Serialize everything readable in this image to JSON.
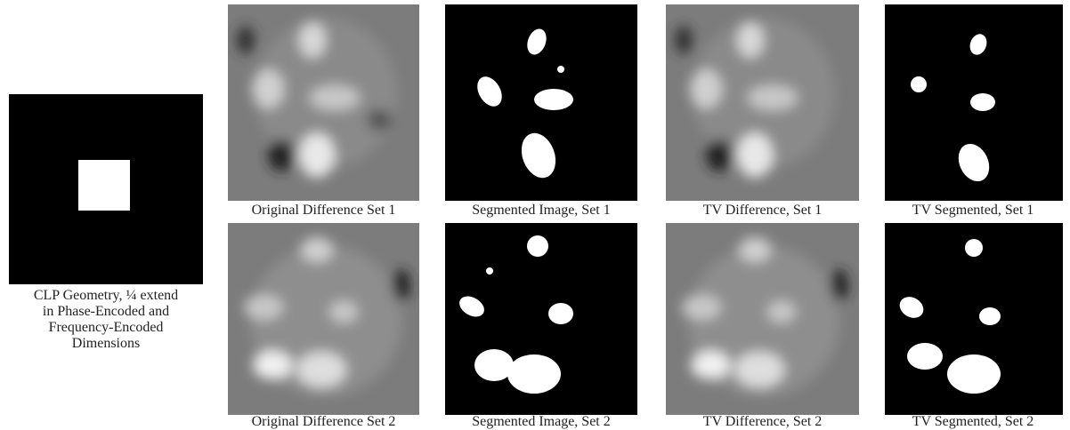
{
  "geometry": {
    "caption_lines": [
      "CLP Geometry, ¼ extend",
      "in Phase-Encoded and",
      "Frequency-Encoded",
      "Dimensions"
    ]
  },
  "grid": {
    "rows": [
      [
        "Original Difference Set 1",
        "Segmented Image, Set 1",
        "TV Difference, Set 1",
        "TV Segmented, Set 1"
      ],
      [
        "Original Difference Set 2",
        "Segmented Image, Set 2",
        "TV Difference, Set 2",
        "TV Segmented, Set 2"
      ]
    ]
  }
}
